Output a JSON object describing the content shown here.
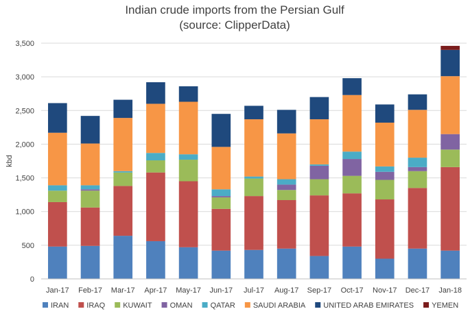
{
  "chart_data": {
    "type": "bar",
    "stacked": true,
    "title": "Indian crude imports from the Persian Gulf",
    "subtitle": "(source: ClipperData)",
    "xlabel": "",
    "ylabel": "kbd",
    "ylim": [
      0,
      3500
    ],
    "yticks": [
      0,
      500,
      1000,
      1500,
      2000,
      2500,
      3000,
      3500
    ],
    "ytick_labels": [
      "0",
      "500",
      "1,000",
      "1,500",
      "2,000",
      "2,500",
      "3,000",
      "3,500"
    ],
    "grid": true,
    "legend_position": "bottom",
    "categories": [
      "Jan-17",
      "Feb-17",
      "Mar-17",
      "Apr-17",
      "May-17",
      "Jun-17",
      "Jul-17",
      "Aug-17",
      "Sep-17",
      "Oct-17",
      "Nov-17",
      "Dec-17",
      "Jan-18"
    ],
    "series": [
      {
        "name": "IRAN",
        "color": "#4f81bd",
        "values": [
          480,
          490,
          640,
          560,
          470,
          420,
          430,
          450,
          340,
          480,
          300,
          450,
          420
        ]
      },
      {
        "name": "IRAQ",
        "color": "#c0504d",
        "values": [
          660,
          570,
          740,
          1020,
          980,
          620,
          800,
          720,
          900,
          790,
          880,
          900,
          1240
        ]
      },
      {
        "name": "KUWAIT",
        "color": "#9bbb59",
        "values": [
          170,
          250,
          200,
          180,
          320,
          170,
          260,
          150,
          240,
          260,
          290,
          250,
          260
        ]
      },
      {
        "name": "OMAN",
        "color": "#8064a2",
        "values": [
          0,
          20,
          0,
          0,
          0,
          20,
          0,
          80,
          200,
          250,
          120,
          60,
          230
        ]
      },
      {
        "name": "QATAR",
        "color": "#4bacc6",
        "values": [
          80,
          60,
          20,
          110,
          80,
          100,
          30,
          80,
          20,
          110,
          80,
          140,
          0
        ]
      },
      {
        "name": "SAUDI ARABIA",
        "color": "#f79646",
        "values": [
          780,
          620,
          790,
          730,
          780,
          630,
          850,
          680,
          670,
          840,
          650,
          710,
          860
        ]
      },
      {
        "name": "UNITED ARAB EMIRATES",
        "color": "#1f497d",
        "values": [
          440,
          410,
          270,
          320,
          230,
          490,
          200,
          350,
          330,
          250,
          270,
          230,
          390
        ]
      },
      {
        "name": "YEMEN",
        "color": "#7b1c1c",
        "values": [
          0,
          0,
          0,
          0,
          0,
          0,
          0,
          0,
          0,
          0,
          0,
          0,
          60
        ]
      }
    ]
  }
}
